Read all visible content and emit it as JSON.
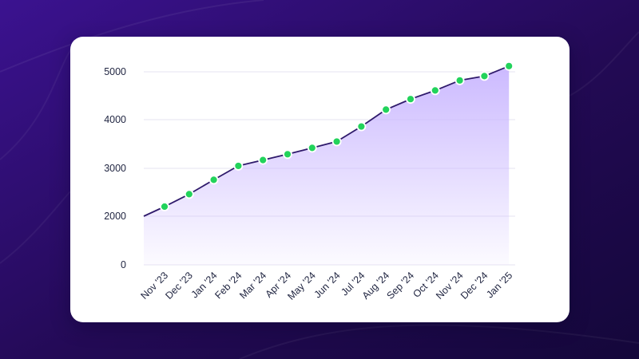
{
  "colors": {
    "background": "#2a0c63",
    "card": "#ffffff",
    "line": "#2f1a6b",
    "area_top": "#c9b6ff",
    "marker_fill": "#22d35b",
    "grid": "#e6e3f2",
    "text": "#1f2440"
  },
  "chart_data": {
    "type": "area",
    "title": "",
    "xlabel": "",
    "ylabel": "",
    "categories": [
      "Nov '23",
      "Dec '23",
      "Jan '24",
      "Feb '24",
      "Mar '24",
      "Apr '24",
      "May '24",
      "Jun '24",
      "Jul '24",
      "Aug '24",
      "Sep '24",
      "Oct '24",
      "Nov '24",
      "Dec '24",
      "Jan '25"
    ],
    "start_value": 2000,
    "values": [
      2200,
      2460,
      2760,
      3050,
      3170,
      3290,
      3420,
      3550,
      3860,
      4210,
      4430,
      4610,
      4820,
      4910,
      5120
    ],
    "yticks": [
      0,
      2000,
      3000,
      4000,
      5000
    ],
    "ylim": [
      0,
      5000
    ],
    "grid": true,
    "legend": "none",
    "markers": true
  }
}
